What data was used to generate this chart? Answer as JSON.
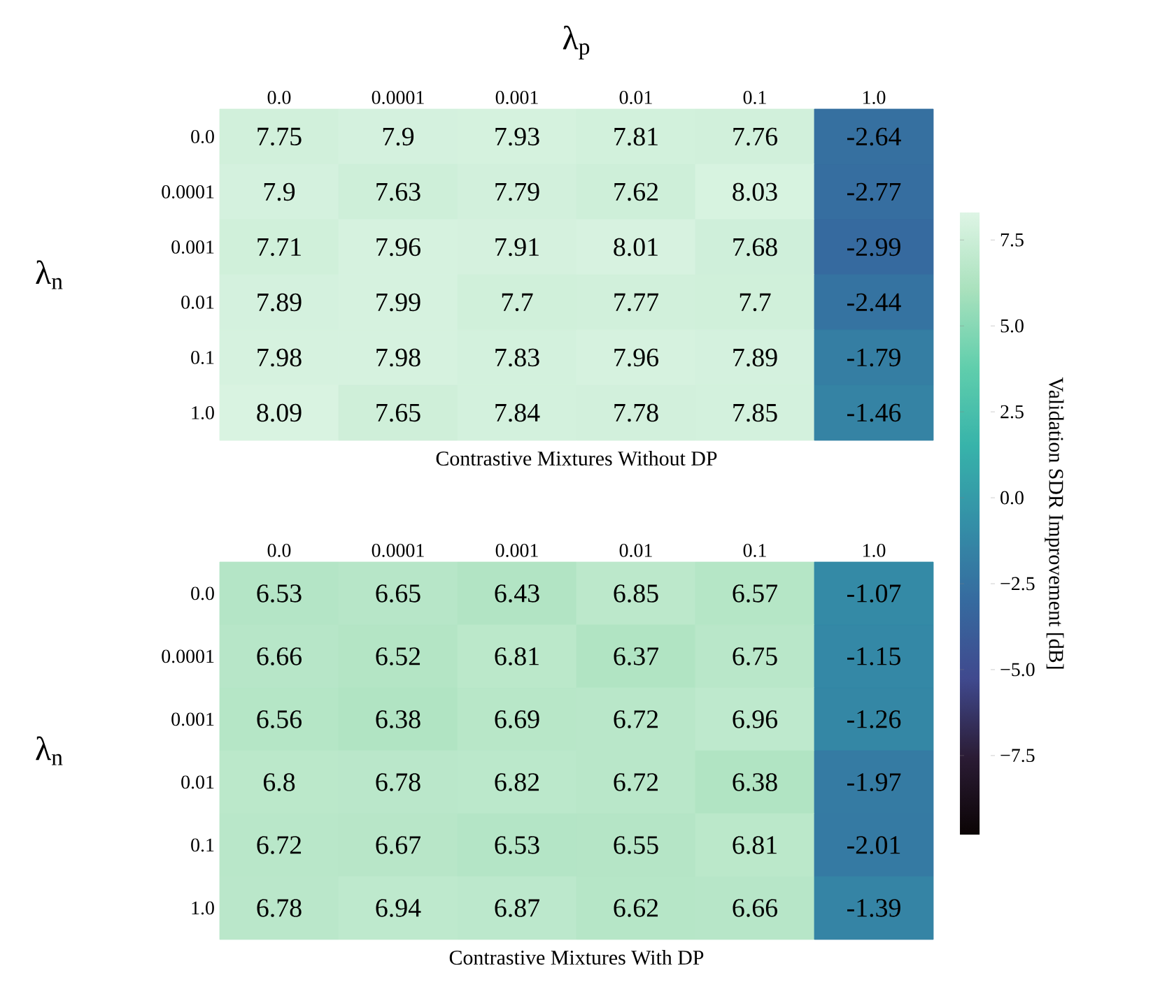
{
  "chart_data": [
    {
      "type": "heatmap",
      "xlabel": "λ$_{p}$",
      "ylabel": "λ$_{n}$",
      "annotations": [
        "Contrastive Mixtures Without DP"
      ],
      "categories": [
        "0.0",
        "0.0001",
        "0.001",
        "0.01",
        "0.1",
        "1.0"
      ],
      "y_categories": [
        "0.0",
        "0.0001",
        "0.001",
        "0.01",
        "0.1",
        "1.0"
      ],
      "cells": [
        [
          7.75,
          7.9,
          7.93,
          7.81,
          7.76,
          -2.64
        ],
        [
          7.9,
          7.63,
          7.79,
          7.62,
          8.03,
          -2.77
        ],
        [
          7.71,
          7.96,
          7.91,
          8.01,
          7.68,
          -2.99
        ],
        [
          7.89,
          7.99,
          7.7,
          7.77,
          7.7,
          -2.44
        ],
        [
          7.98,
          7.98,
          7.83,
          7.96,
          7.89,
          -1.79
        ],
        [
          8.09,
          7.65,
          7.84,
          7.78,
          7.85,
          -1.46
        ]
      ],
      "data_labels": true,
      "clabel": "Validation SDR Improvement [dB]",
      "clim": [
        -9.8,
        8.3
      ],
      "cticks": [
        {
          "value": -7.5,
          "label": "−7.5"
        },
        {
          "value": -5.0,
          "label": "−5.0"
        },
        {
          "value": -2.5,
          "label": "−2.5"
        },
        {
          "value": 0.0,
          "label": "0.0"
        },
        {
          "value": 2.5,
          "label": "2.5"
        },
        {
          "value": 5.0,
          "label": "5.0"
        },
        {
          "value": 7.5,
          "label": "7.5"
        }
      ]
    },
    {
      "type": "heatmap",
      "ylabel": "λ$_{n}$",
      "annotations": [
        "Contrastive Mixtures With DP"
      ],
      "categories": [
        "0.0",
        "0.0001",
        "0.001",
        "0.01",
        "0.1",
        "1.0"
      ],
      "y_categories": [
        "0.0",
        "0.0001",
        "0.001",
        "0.01",
        "0.1",
        "1.0"
      ],
      "cells": [
        [
          6.53,
          6.65,
          6.43,
          6.85,
          6.57,
          -1.07
        ],
        [
          6.66,
          6.52,
          6.81,
          6.37,
          6.75,
          -1.15
        ],
        [
          6.56,
          6.38,
          6.69,
          6.72,
          6.96,
          -1.26
        ],
        [
          6.8,
          6.78,
          6.82,
          6.72,
          6.38,
          -1.97
        ],
        [
          6.72,
          6.67,
          6.53,
          6.55,
          6.81,
          -2.01
        ],
        [
          6.78,
          6.94,
          6.87,
          6.62,
          6.66,
          -1.39
        ]
      ],
      "data_labels": true
    }
  ]
}
